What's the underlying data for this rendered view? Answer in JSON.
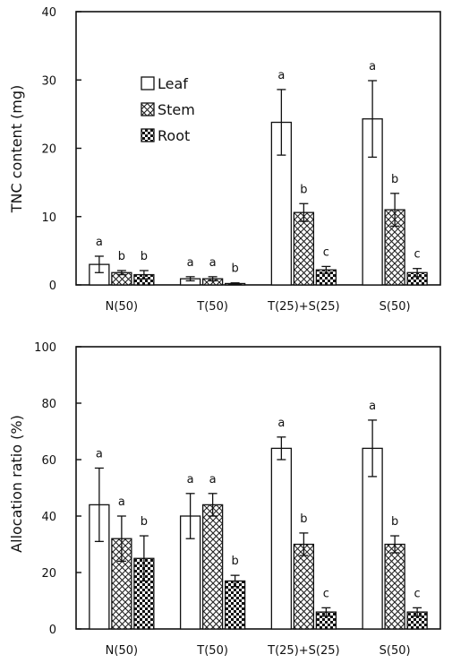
{
  "chart_data": [
    {
      "type": "bar",
      "ylabel": "TNC content (mg)",
      "ylim": [
        0,
        40
      ],
      "yticks": [
        0,
        10,
        20,
        30,
        40
      ],
      "categories": [
        "N(50)",
        "T(50)",
        "T(25)+S(25)",
        "S(50)"
      ],
      "legend_position": "top-left",
      "series": [
        {
          "name": "Leaf",
          "pattern": "open",
          "values": [
            3.0,
            0.9,
            23.8,
            24.3
          ],
          "errors": [
            1.2,
            0.3,
            4.8,
            5.6
          ],
          "letters": [
            "a",
            "a",
            "a",
            "a"
          ]
        },
        {
          "name": "Stem",
          "pattern": "hatched",
          "values": [
            1.8,
            0.9,
            10.6,
            11.0
          ],
          "errors": [
            0.3,
            0.3,
            1.3,
            2.4
          ],
          "letters": [
            "b",
            "a",
            "b",
            "b"
          ]
        },
        {
          "name": "Root",
          "pattern": "checkered",
          "values": [
            1.5,
            0.2,
            2.2,
            1.8
          ],
          "errors": [
            0.6,
            0.1,
            0.5,
            0.6
          ],
          "letters": [
            "b",
            "b",
            "c",
            "c"
          ]
        }
      ]
    },
    {
      "type": "bar",
      "ylabel": "Allocation ratio (%)",
      "ylim": [
        0,
        100
      ],
      "yticks": [
        0,
        20,
        40,
        60,
        80,
        100
      ],
      "categories": [
        "N(50)",
        "T(50)",
        "T(25)+S(25)",
        "S(50)"
      ],
      "series": [
        {
          "name": "Leaf",
          "pattern": "open",
          "values": [
            44,
            40,
            64,
            64
          ],
          "errors": [
            13,
            8,
            4,
            10
          ],
          "letters": [
            "a",
            "a",
            "a",
            "a"
          ]
        },
        {
          "name": "Stem",
          "pattern": "hatched",
          "values": [
            32,
            44,
            30,
            30
          ],
          "errors": [
            8,
            4,
            4,
            3
          ],
          "letters": [
            "a",
            "a",
            "b",
            "b"
          ]
        },
        {
          "name": "Root",
          "pattern": "checkered",
          "values": [
            25,
            17,
            6,
            6
          ],
          "errors": [
            8,
            2,
            1.5,
            1.5
          ],
          "letters": [
            "b",
            "b",
            "c",
            "c"
          ]
        }
      ]
    }
  ]
}
